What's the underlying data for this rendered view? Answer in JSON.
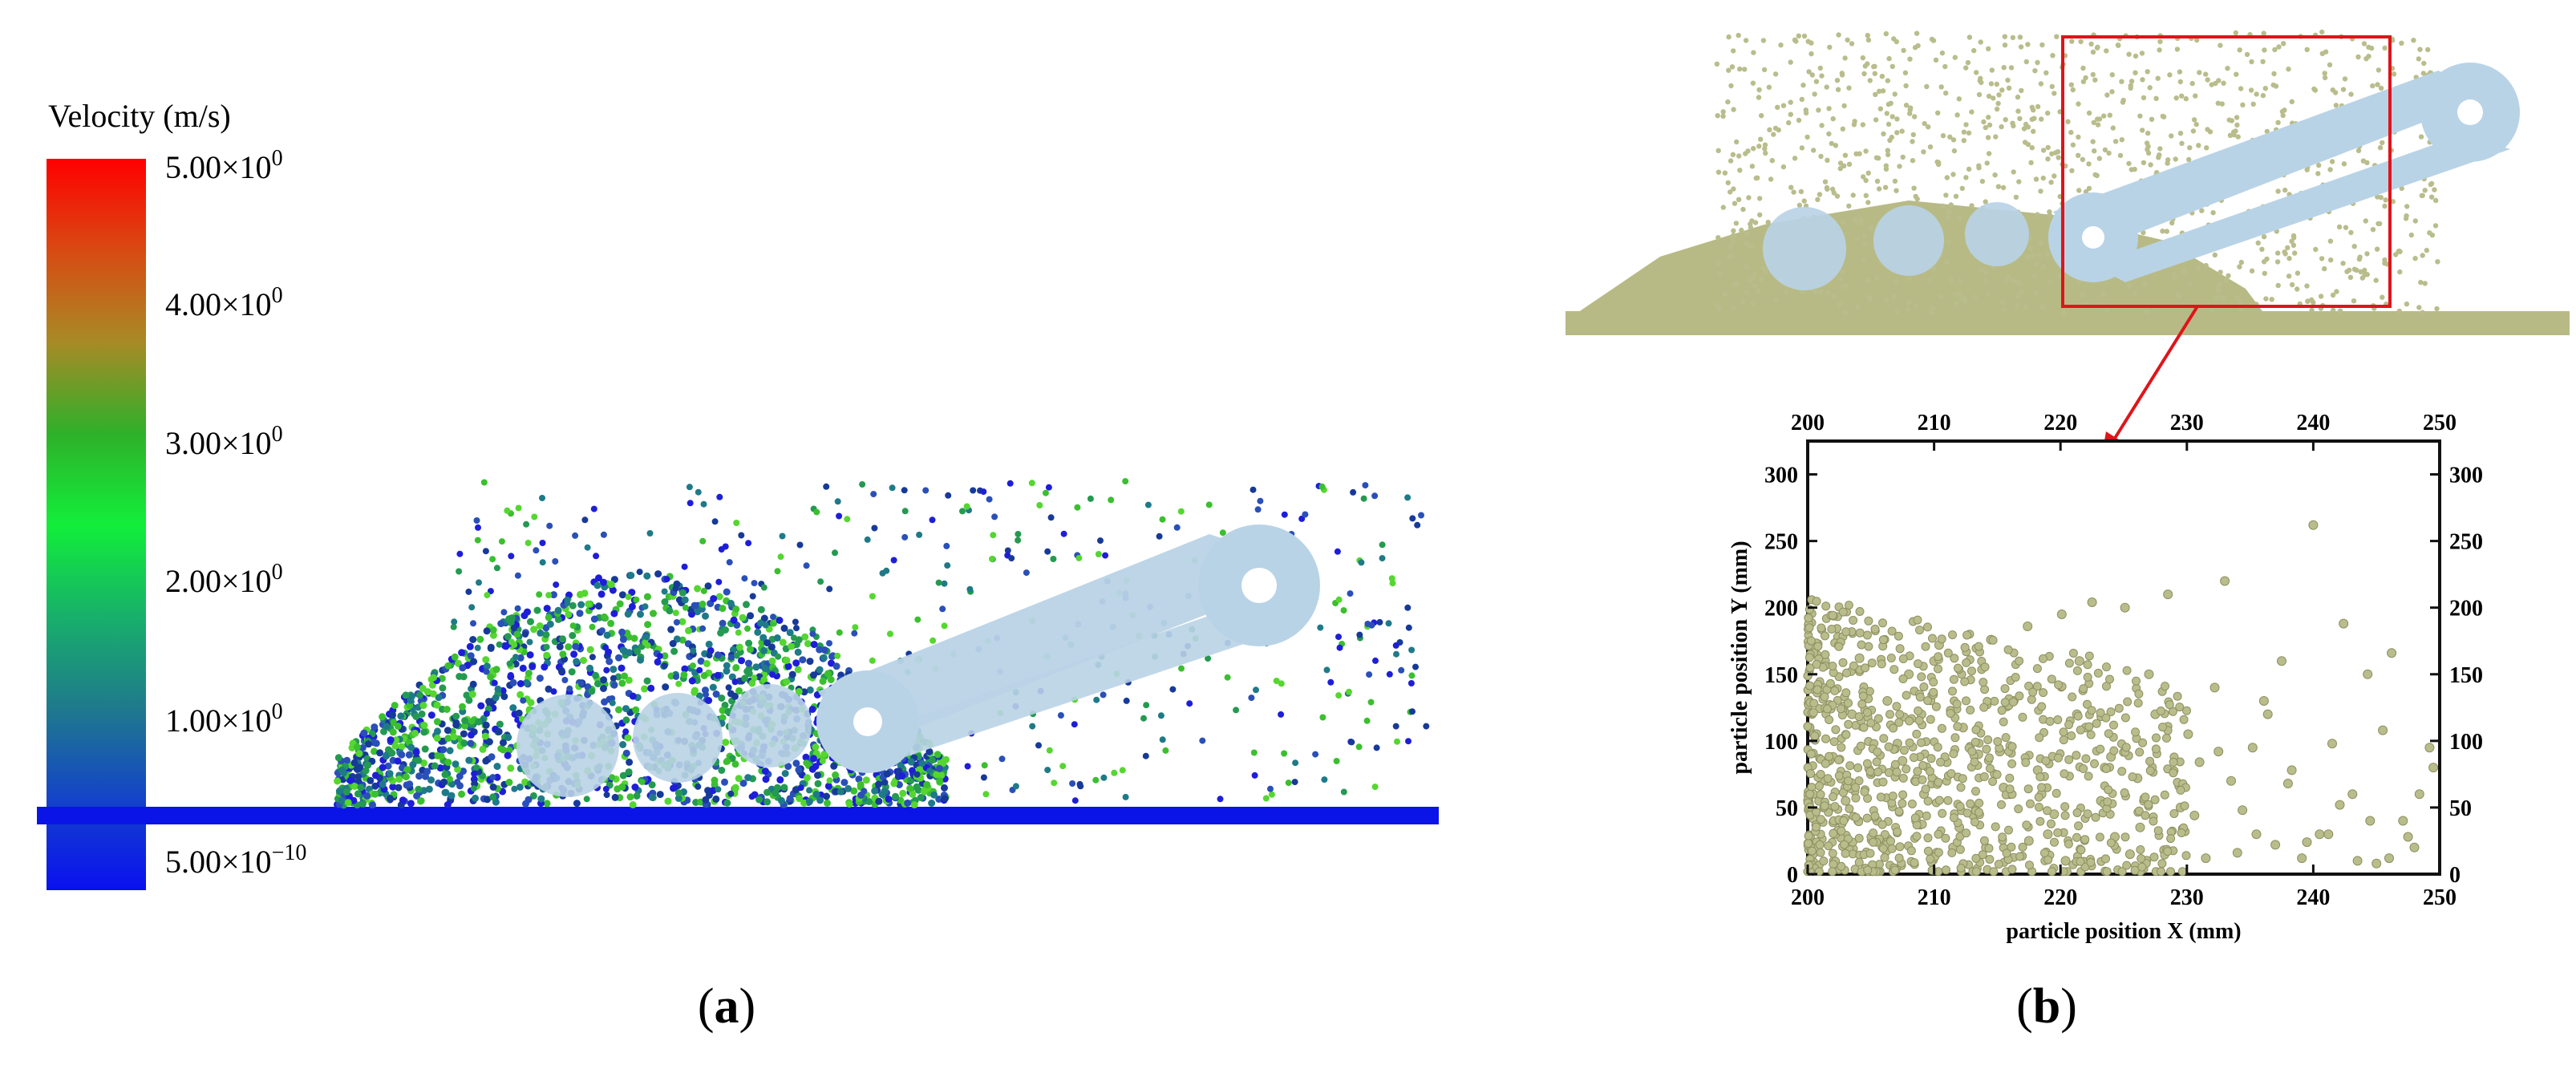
{
  "panel_a": {
    "label_prefix": "(",
    "label_letter": "a",
    "label_suffix": ")",
    "colorbar": {
      "title": "Velocity (m/s)",
      "ticks": [
        {
          "base": "5.00×10",
          "exp": "0"
        },
        {
          "base": "4.00×10",
          "exp": "0"
        },
        {
          "base": "3.00×10",
          "exp": "0"
        },
        {
          "base": "2.00×10",
          "exp": "0"
        },
        {
          "base": "1.00×10",
          "exp": "0"
        },
        {
          "base": "5.00×10",
          "exp": "−10"
        }
      ],
      "colors": [
        "#ff0000",
        "#d84a12",
        "#a88a26",
        "#2fb02a",
        "#12ee3a",
        "#18b06a",
        "#1f7a8c",
        "#1444c8",
        "#0a10f0"
      ]
    },
    "particle_colors": [
      "#1e1ed8",
      "#2a4fb8",
      "#1f7a88",
      "#249a50",
      "#3bbf2f",
      "#55d630",
      "#173a98"
    ]
  },
  "panel_b": {
    "label_prefix": "(",
    "label_letter": "b",
    "label_suffix": ")",
    "particle_color": "#b9bd8c",
    "highlight_color": "#e0141a",
    "belt_color": "#b8d3e8"
  },
  "chart_data": {
    "type": "scatter",
    "title": "",
    "xlabel": "particle position X  (mm)",
    "ylabel": "particle position Y  (mm)",
    "xlim": [
      200,
      250
    ],
    "ylim": [
      0,
      325
    ],
    "x_ticks": [
      200,
      210,
      220,
      230,
      240,
      250
    ],
    "y_ticks": [
      0,
      50,
      100,
      150,
      200,
      250,
      300
    ],
    "grid": false,
    "series": [
      {
        "values_x": [
          200.5,
          201.2,
          202.0,
          203.5,
          204.1,
          205.0,
          206.3,
          207.1,
          208.0,
          209.2,
          210.4,
          211.0,
          212.3,
          213.1,
          214.5,
          215.2,
          216.0,
          217.4,
          218.2,
          219.0,
          220.1,
          221.3,
          222.5,
          223.2,
          224.0,
          225.1,
          226.3,
          227.0,
          228.2,
          229.4,
          230.1,
          231.5,
          232.2,
          233.0,
          234.4,
          235.2,
          236.1,
          237.0,
          238.3,
          239.1,
          240.0,
          241.2,
          242.4,
          243.1,
          244.3,
          245.0,
          246.2,
          247.1,
          248.0,
          249.2,
          200.9,
          202.4,
          204.0,
          206.1,
          208.5,
          210.0,
          212.0,
          214.1,
          216.3,
          218.5,
          220.4,
          222.0,
          224.3,
          226.1,
          228.5,
          230.6,
          232.5,
          234.0,
          236.4,
          238.0,
          240.5,
          242.1,
          244.5,
          246.0,
          248.4,
          201.5,
          203.0,
          205.5,
          207.5,
          209.0,
          211.5,
          213.5,
          215.5,
          217.5,
          219.5,
          221.5,
          223.5,
          225.5,
          227.5,
          229.5,
          231.0,
          233.5,
          235.5,
          237.5,
          239.5,
          241.5,
          243.5,
          245.5,
          247.5,
          249.5
        ],
        "values_y": [
          105,
          140,
          88,
          120,
          162,
          75,
          130,
          98,
          150,
          60,
          172,
          84,
          110,
          44,
          176,
          92,
          60,
          186,
          78,
          30,
          195,
          120,
          204,
          55,
          88,
          200,
          35,
          150,
          18,
          66,
          105,
          12,
          140,
          220,
          48,
          95,
          130,
          22,
          78,
          12,
          262,
          30,
          188,
          60,
          150,
          8,
          166,
          40,
          20,
          95,
          55,
          178,
          40,
          25,
          70,
          160,
          35,
          20,
          130,
          60,
          10,
          110,
          28,
          72,
          210,
          44,
          92,
          16,
          120,
          68,
          30,
          52,
          40,
          12,
          60,
          70,
          55,
          40,
          85,
          120,
          20,
          90,
          65,
          25,
          45,
          160,
          80,
          15,
          120,
          50,
          84,
          70,
          30,
          160,
          24,
          98,
          10,
          108,
          28,
          80
        ],
        "extra_points_note": ""
      }
    ]
  }
}
